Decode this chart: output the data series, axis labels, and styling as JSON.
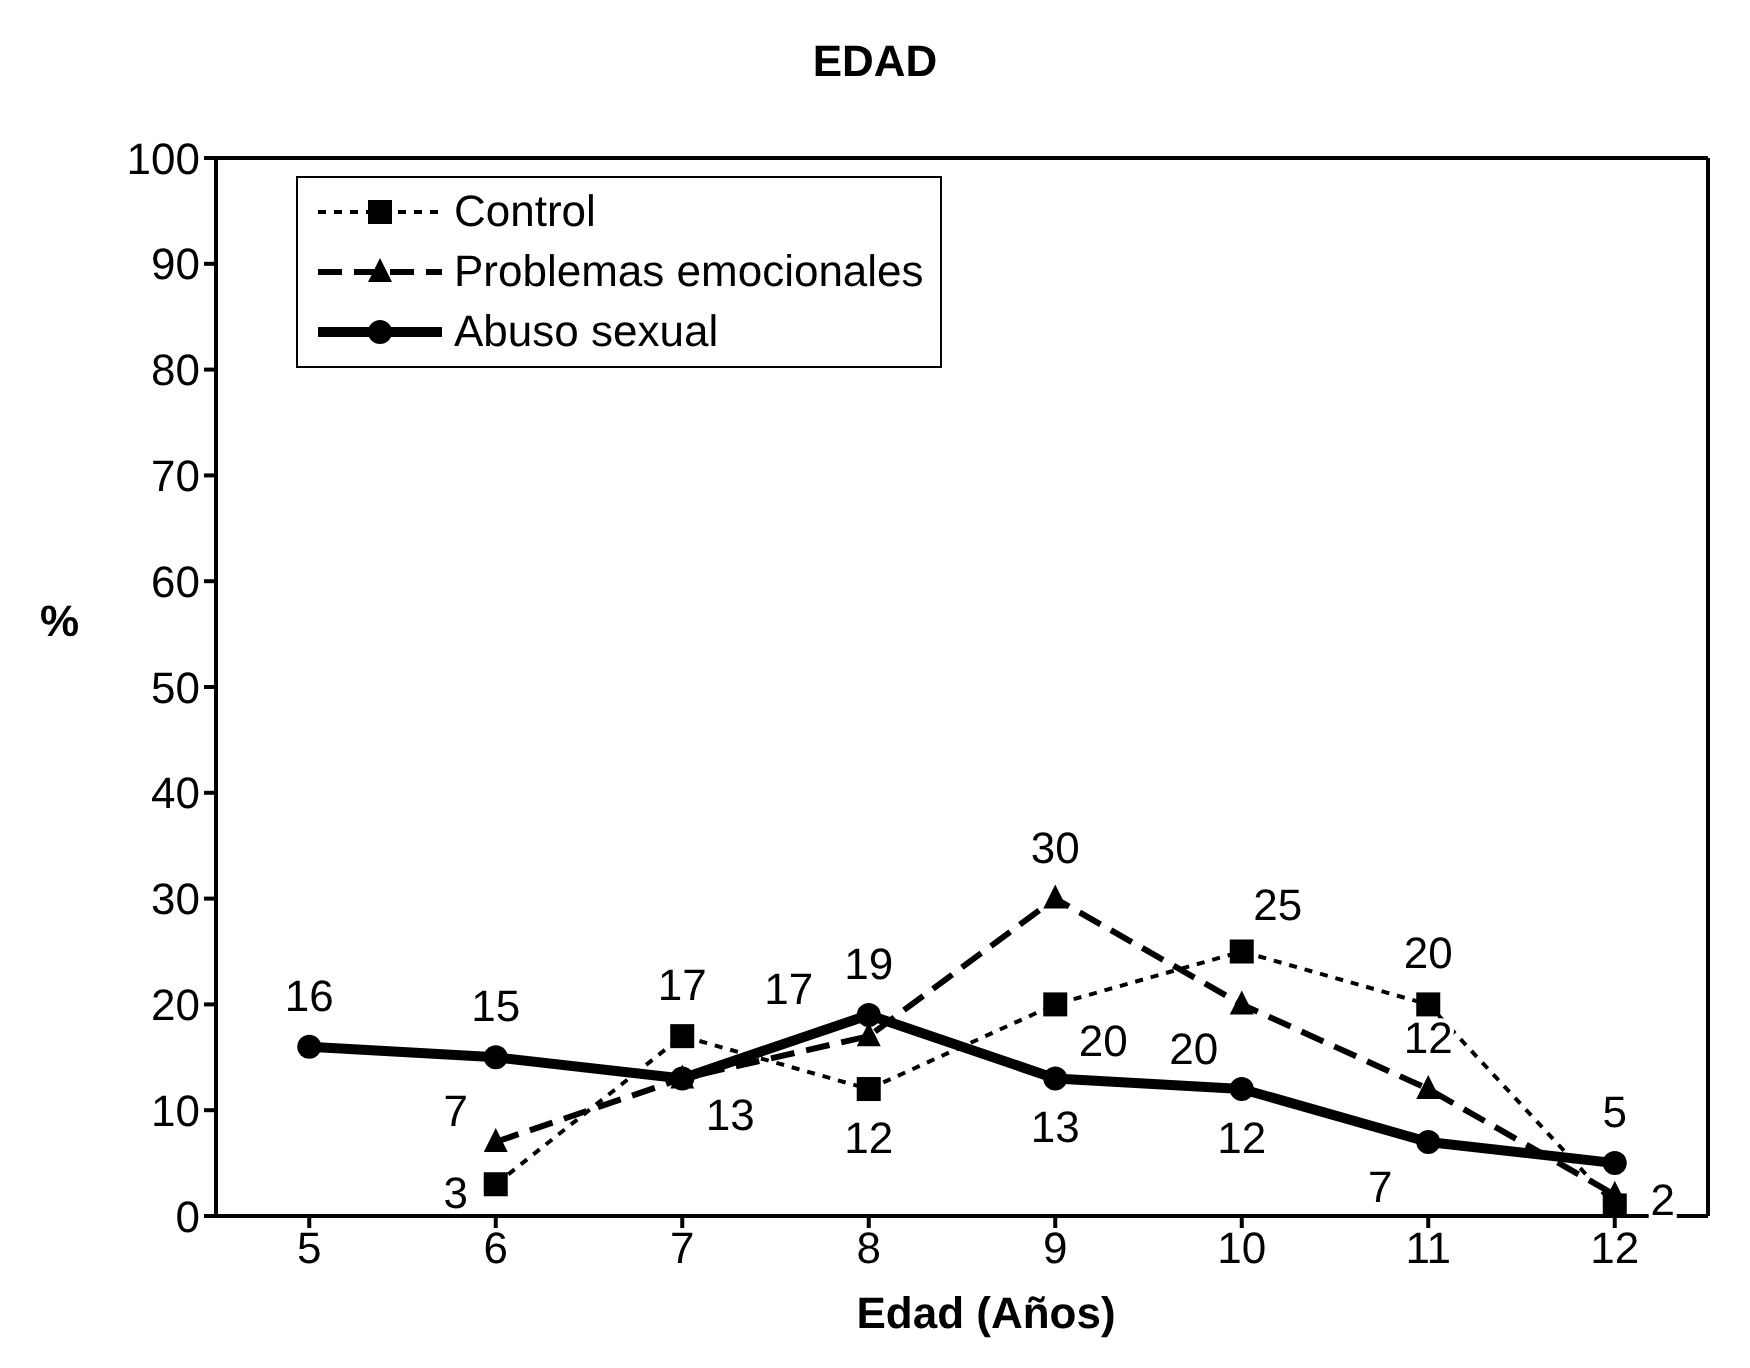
{
  "chart_data": {
    "type": "line",
    "title": "EDAD",
    "xlabel": "Edad (Años)",
    "ylabel": "%",
    "categories": [
      "5",
      "6",
      "7",
      "8",
      "9",
      "10",
      "11",
      "12"
    ],
    "series": [
      {
        "name": "Control",
        "color": "#000000",
        "marker": "square",
        "line_style": "dotted",
        "values": [
          null,
          3,
          17,
          12,
          20,
          25,
          20,
          1
        ],
        "value_labels": [
          null,
          "3",
          "17",
          "12",
          "20",
          "25",
          "20",
          null
        ]
      },
      {
        "name": "Problemas emocionales",
        "color": "#000000",
        "marker": "triangle",
        "line_style": "dashed",
        "values": [
          null,
          7,
          13,
          17,
          30,
          20,
          12,
          2
        ],
        "value_labels": [
          null,
          "7",
          null,
          "17",
          "30",
          "20",
          "12",
          "2"
        ]
      },
      {
        "name": "Abuso sexual",
        "color": "#000000",
        "marker": "circle",
        "line_style": "solid",
        "values": [
          16,
          15,
          13,
          19,
          13,
          12,
          7,
          5
        ],
        "value_labels": [
          "16",
          "15",
          "13",
          "19",
          "13",
          "12",
          "7",
          "5"
        ]
      }
    ],
    "ylim": [
      0,
      100
    ],
    "yticks": [
      0,
      10,
      20,
      30,
      40,
      50,
      60,
      70,
      80,
      90,
      100
    ],
    "grid": false,
    "legend": "top left"
  }
}
